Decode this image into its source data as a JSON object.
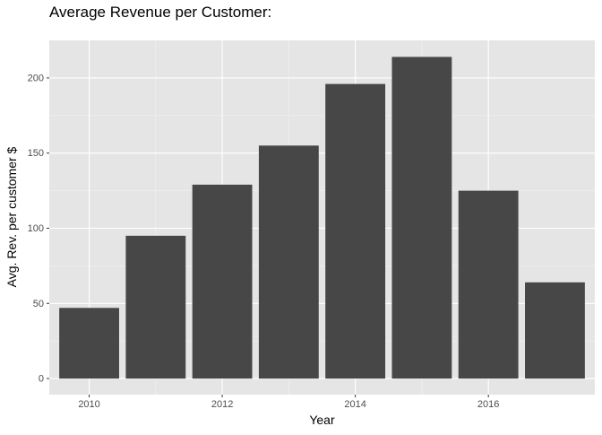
{
  "chart_data": {
    "type": "bar",
    "title": "Average Revenue per Customer:",
    "xlabel": "Year",
    "ylabel": "Avg. Rev. per customer $",
    "categories": [
      2010,
      2011,
      2012,
      2013,
      2014,
      2015,
      2016,
      2017
    ],
    "values": [
      47,
      95,
      129,
      155,
      196,
      214,
      125,
      64
    ],
    "xlim": [
      2009.4,
      2017.6
    ],
    "ylim": [
      -10.7,
      225
    ],
    "x_ticks": [
      2010,
      2012,
      2014,
      2016
    ],
    "x_tick_labels": [
      "2010",
      "2012",
      "2014",
      "2016"
    ],
    "y_ticks": [
      0,
      50,
      100,
      150,
      200
    ],
    "y_tick_labels": [
      "0",
      "50",
      "100",
      "150",
      "200"
    ],
    "grid": true,
    "colors": {
      "bar": "#474747",
      "panel": "#e5e5e5",
      "grid_major": "#ffffff",
      "grid_minor": "#f2f2f2"
    }
  }
}
